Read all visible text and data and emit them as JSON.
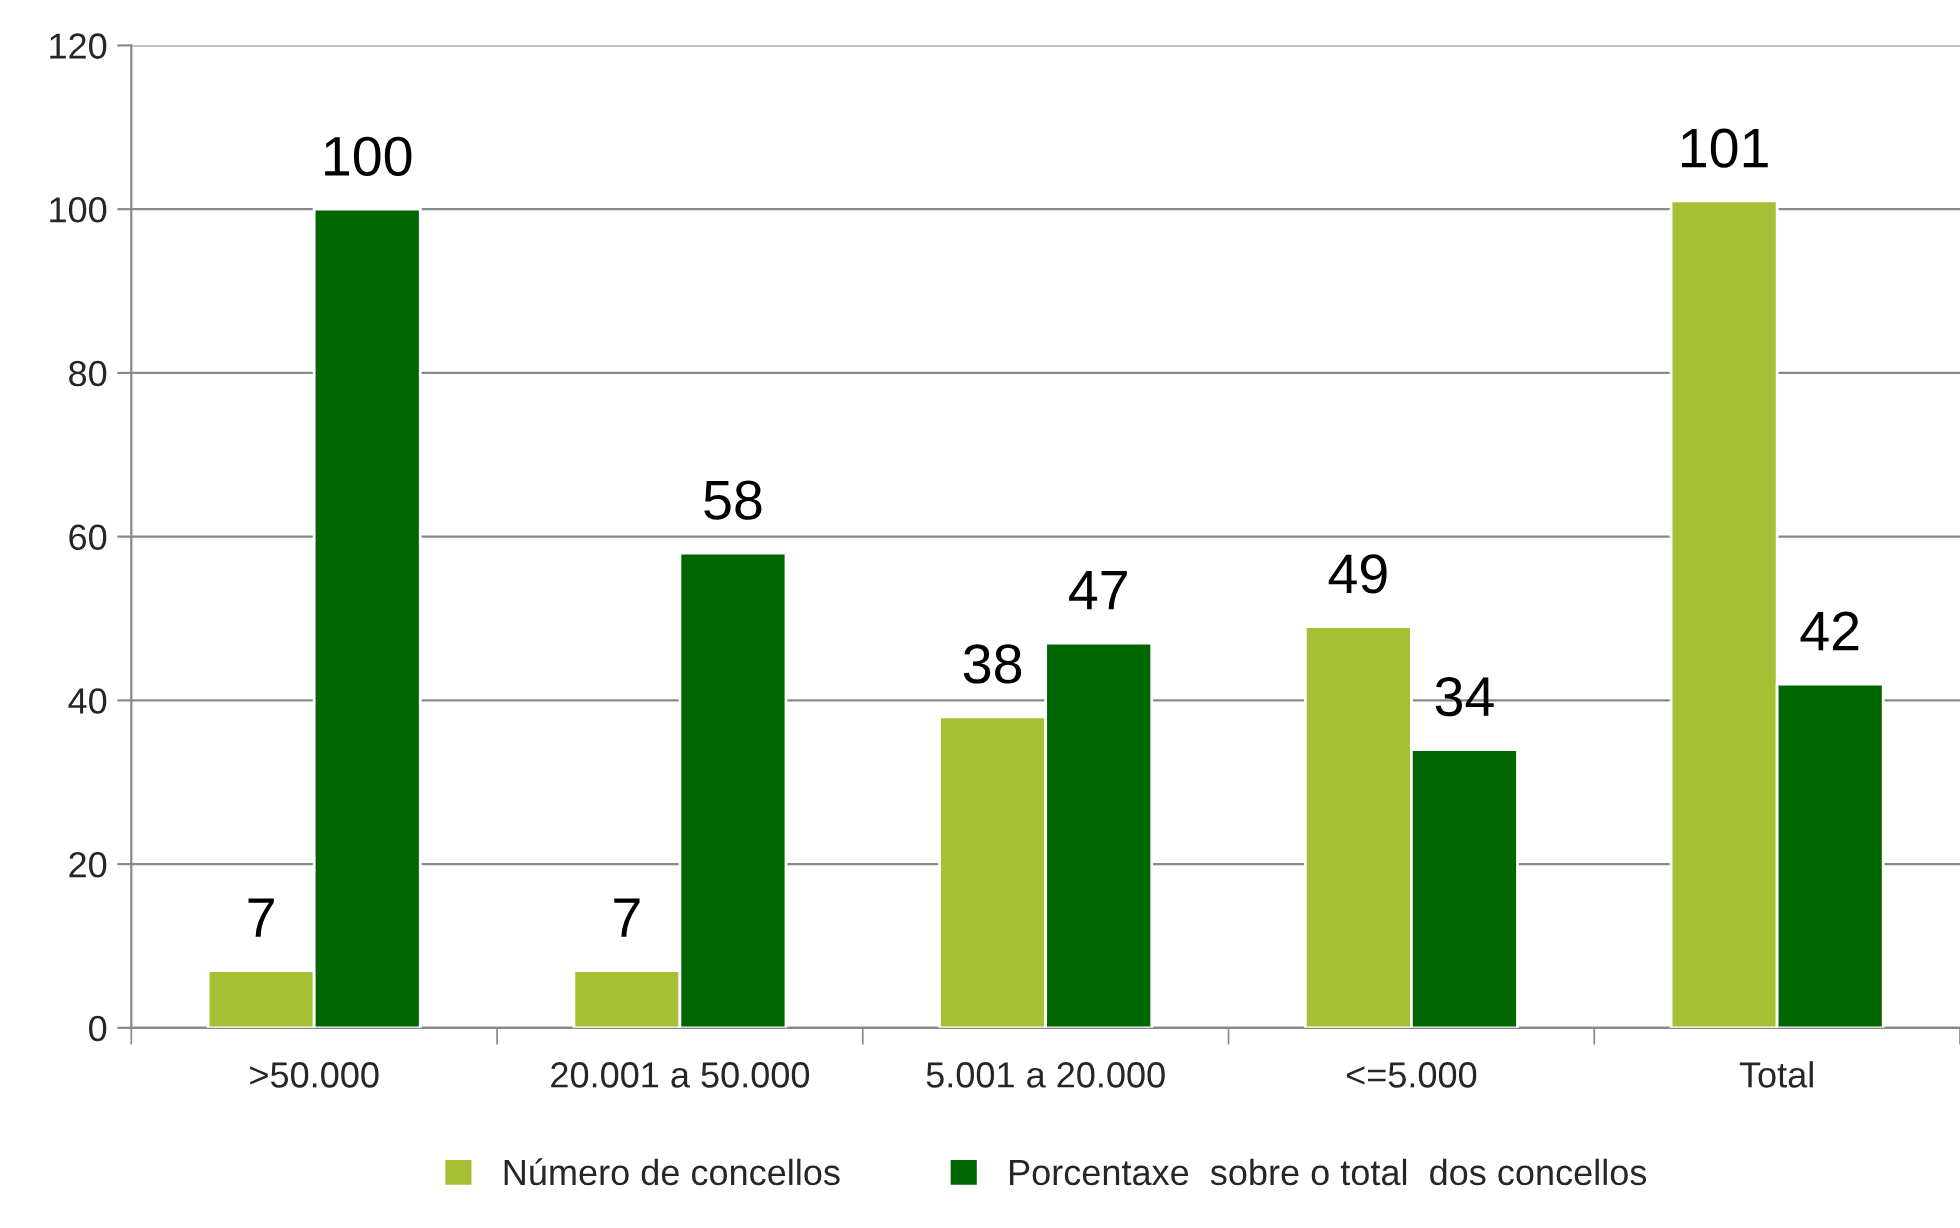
{
  "chart_data": {
    "type": "bar",
    "categories": [
      ">50.000",
      "20.001 a 50.000",
      "5.001 a 20.000",
      "<=5.000",
      "Total"
    ],
    "series": [
      {
        "name": "Número de concellos",
        "color": "#a5c034",
        "values": [
          7,
          7,
          38,
          49,
          101
        ]
      },
      {
        "name": "Porcentaxe  sobre o total  dos concellos",
        "color": "#006600",
        "values": [
          100,
          58,
          47,
          34,
          42
        ]
      }
    ],
    "ylim": [
      0,
      120
    ],
    "yticks": [
      0,
      20,
      40,
      60,
      80,
      100,
      120
    ],
    "grid": "y",
    "legend": "bottom",
    "data_labels": true
  }
}
